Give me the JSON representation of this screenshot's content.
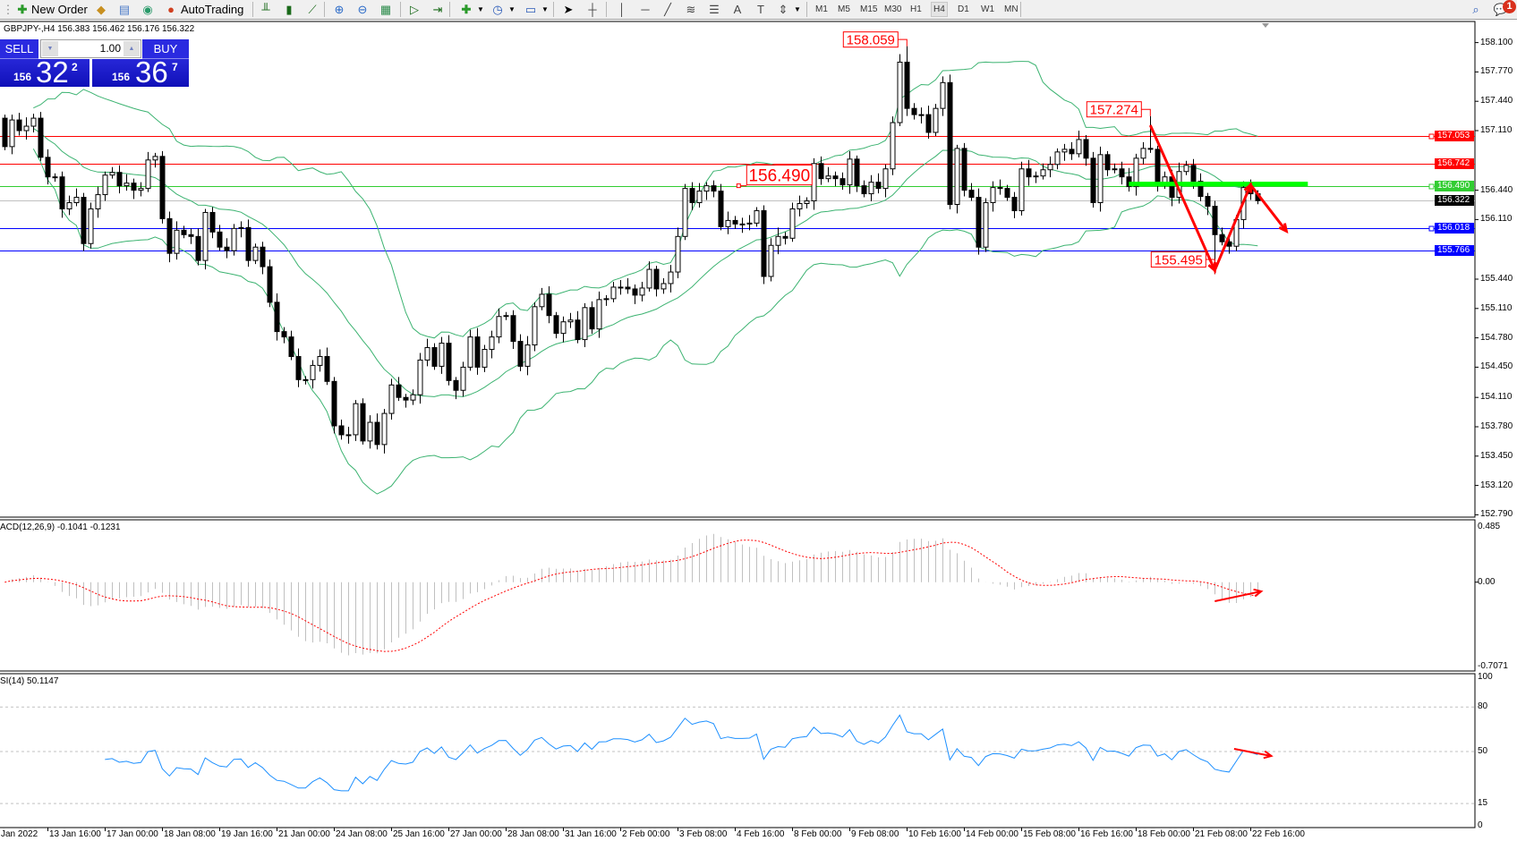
{
  "toolbar": {
    "new_order_label": "New Order",
    "autotrading_label": "AutoTrading",
    "timeframes": [
      "M1",
      "M5",
      "M15",
      "M30",
      "H1",
      "H4",
      "D1",
      "W1",
      "MN"
    ],
    "active_timeframe": "H4",
    "notification_count": "1",
    "icons": [
      "new-order-icon",
      "market-watch-icon",
      "navigator-icon",
      "signals-icon",
      "autotrading-icon",
      "bar-chart-icon",
      "candlestick-icon",
      "line-chart-icon",
      "zoom-in-icon",
      "zoom-out-icon",
      "tile-windows-icon",
      "auto-scroll-icon",
      "chart-shift-icon",
      "indicators-icon",
      "periods-icon",
      "templates-icon",
      "cursor-icon",
      "crosshair-icon",
      "vertical-line-icon",
      "horizontal-line-icon",
      "trendline-icon",
      "fibonacci-icon",
      "channel-icon",
      "text-icon",
      "text-label-icon",
      "arrows-icon",
      "search-icon",
      "notification-icon"
    ]
  },
  "chart_header": "GBPJPY-,H4  156.383 156.462 156.176 156.322",
  "one_click": {
    "sell_label": "SELL",
    "buy_label": "BUY",
    "lot": "1.00",
    "sell_price": {
      "big_figure": "156",
      "pips": "32",
      "point": "2"
    },
    "buy_price": {
      "big_figure": "156",
      "pips": "36",
      "point": "7"
    }
  },
  "chart_data": {
    "type": "candlestick",
    "symbol": "GBPJPY-",
    "timeframe": "H4",
    "first_open": 157.25,
    "closes": [
      156.93,
      157.23,
      157.11,
      157.16,
      157.25,
      156.81,
      156.59,
      156.59,
      156.23,
      156.3,
      156.36,
      155.84,
      156.23,
      156.39,
      156.61,
      156.64,
      156.49,
      156.52,
      156.44,
      156.46,
      156.78,
      156.82,
      156.12,
      155.73,
      155.99,
      155.94,
      155.92,
      155.65,
      156.19,
      155.97,
      155.8,
      155.76,
      156.01,
      156.02,
      155.65,
      155.8,
      155.58,
      155.18,
      154.85,
      154.79,
      154.57,
      154.31,
      154.31,
      154.47,
      154.57,
      154.29,
      153.79,
      153.69,
      153.69,
      154.04,
      153.62,
      153.83,
      153.58,
      153.93,
      154.25,
      154.11,
      154.08,
      154.14,
      154.53,
      154.67,
      154.46,
      154.72,
      154.3,
      154.19,
      154.45,
      154.79,
      154.45,
      154.65,
      154.79,
      155.02,
      155.03,
      154.74,
      154.46,
      154.7,
      155.13,
      155.27,
      155.03,
      154.83,
      154.96,
      154.98,
      154.76,
      155.12,
      154.88,
      155.21,
      155.22,
      155.35,
      155.35,
      155.33,
      155.26,
      155.34,
      155.55,
      155.33,
      155.39,
      155.52,
      155.92,
      156.46,
      156.3,
      156.43,
      156.49,
      156.43,
      156.03,
      156.1,
      156.06,
      156.06,
      156.07,
      156.21,
      155.47,
      155.82,
      155.92,
      155.9,
      156.23,
      156.29,
      156.32,
      156.74,
      156.57,
      156.6,
      156.57,
      156.5,
      156.79,
      156.49,
      156.4,
      156.53,
      156.46,
      156.68,
      157.2,
      157.88,
      157.36,
      157.29,
      157.29,
      157.09,
      157.36,
      157.65,
      156.28,
      156.91,
      156.44,
      156.36,
      155.8,
      156.3,
      156.47,
      156.46,
      156.36,
      156.21,
      156.68,
      156.59,
      156.6,
      156.67,
      156.73,
      156.87,
      156.9,
      156.85,
      157.01,
      156.8,
      156.3,
      156.84,
      156.67,
      156.68,
      156.59,
      156.48,
      156.8,
      156.91,
      156.9,
      156.51,
      156.59,
      156.36,
      156.65,
      156.72,
      156.54,
      156.37,
      156.26,
      155.94,
      155.86,
      155.81,
      156.11,
      156.47,
      156.4,
      156.322
    ],
    "y_axis": {
      "min": 152.79,
      "max": 158.1,
      "ticks": [
        "158.100",
        "157.770",
        "157.440",
        "157.110",
        "156.440",
        "156.110",
        "155.440",
        "155.110",
        "154.780",
        "154.450",
        "154.110",
        "153.780",
        "153.450",
        "153.120",
        "152.790"
      ]
    },
    "x_axis_labels": [
      "Jan 2022",
      "13 Jan 16:00",
      "17 Jan 00:00",
      "18 Jan 08:00",
      "19 Jan 16:00",
      "21 Jan 00:00",
      "24 Jan 08:00",
      "25 Jan 16:00",
      "27 Jan 00:00",
      "28 Jan 08:00",
      "31 Jan 16:00",
      "2 Feb 00:00",
      "3 Feb 08:00",
      "4 Feb 16:00",
      "8 Feb 00:00",
      "9 Feb 08:00",
      "10 Feb 16:00",
      "14 Feb 00:00",
      "15 Feb 08:00",
      "16 Feb 16:00",
      "18 Feb 00:00",
      "21 Feb 08:00",
      "22 Feb 16:00"
    ],
    "levels": [
      {
        "price": "157.053",
        "color": "#ff0000",
        "text_color": "#ffffff",
        "marker": true
      },
      {
        "price": "156.742",
        "color": "#ff0000",
        "text_color": "#ffffff",
        "marker": false
      },
      {
        "price": "156.490",
        "color": "#32cd32",
        "text_color": "#ffffff",
        "marker": true
      },
      {
        "price": "156.322",
        "color": "#c0c0c0",
        "label_bg": "#000000",
        "text_color": "#ffffff",
        "marker": false
      },
      {
        "price": "156.018",
        "color": "#0000ff",
        "text_color": "#ffffff",
        "marker": true
      },
      {
        "price": "155.766",
        "color": "#0000ff",
        "text_color": "#ffffff",
        "marker": false
      }
    ],
    "annotations": [
      {
        "text": "158.059",
        "kind": "high",
        "bar": 126
      },
      {
        "text": "157.274",
        "kind": "high",
        "bar": 160
      },
      {
        "text": "155.495",
        "kind": "low",
        "bar": 169
      },
      {
        "text": "156.490",
        "kind": "price-label",
        "bar": 102
      }
    ],
    "trend_arrows": {
      "color": "#ff0000",
      "points": [
        [
          160,
          157.17
        ],
        [
          169,
          155.54
        ],
        [
          174,
          156.5
        ],
        [
          179,
          155.98
        ]
      ]
    },
    "support_bar": {
      "color": "#00ff00",
      "price": 156.51,
      "from_bar": 157,
      "to_bar": 182
    },
    "bollinger": {
      "period": 20,
      "deviation": 2,
      "color": "#3cb371"
    },
    "macd": {
      "label": "ACD(12,26,9) -0.1041 -0.1231",
      "fast": 12,
      "slow": 26,
      "signal": 9,
      "axis_ticks": [
        "0.485",
        "0.00",
        "-0.7071"
      ],
      "range": [
        -0.7071,
        0.485
      ],
      "histogram_color": "#c0c0c0",
      "signal_color": "#ff0000",
      "arrow": [
        [
          169,
          -0.16
        ],
        [
          175.5,
          -0.077
        ]
      ]
    },
    "rsi": {
      "label": "SI(14) 50.1147",
      "period": 14,
      "axis_ticks": [
        "100",
        "80",
        "50",
        "15",
        "0"
      ],
      "levels": [
        80,
        50,
        15
      ],
      "color": "#1e90ff",
      "arrow": [
        [
          171.7,
          51.8
        ],
        [
          176.9,
          47
        ]
      ]
    }
  }
}
